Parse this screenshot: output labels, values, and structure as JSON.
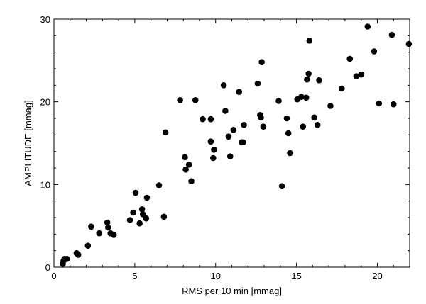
{
  "chart_data": {
    "type": "scatter",
    "xlabel": "RMS per 10 min [mmag]",
    "ylabel": "AMPLITUDE [mmag]",
    "xlim": [
      0,
      22
    ],
    "ylim": [
      0,
      30
    ],
    "xticks": [
      0,
      5,
      10,
      15,
      20
    ],
    "yticks": [
      0,
      10,
      20,
      30
    ],
    "grid": false,
    "marker_color": "#000000",
    "points": [
      [
        0.55,
        0.4
      ],
      [
        0.6,
        0.8
      ],
      [
        0.65,
        1.0
      ],
      [
        0.8,
        1.0
      ],
      [
        1.4,
        1.7
      ],
      [
        1.5,
        1.5
      ],
      [
        2.1,
        2.6
      ],
      [
        2.3,
        4.9
      ],
      [
        2.8,
        4.1
      ],
      [
        3.3,
        5.4
      ],
      [
        3.35,
        4.8
      ],
      [
        3.5,
        4.1
      ],
      [
        3.7,
        3.9
      ],
      [
        4.7,
        5.7
      ],
      [
        4.9,
        6.6
      ],
      [
        5.05,
        9.0
      ],
      [
        5.3,
        5.3
      ],
      [
        5.45,
        7.0
      ],
      [
        5.5,
        6.4
      ],
      [
        5.7,
        5.9
      ],
      [
        5.75,
        8.4
      ],
      [
        6.5,
        9.9
      ],
      [
        6.8,
        6.1
      ],
      [
        6.9,
        16.3
      ],
      [
        7.8,
        20.2
      ],
      [
        8.1,
        13.3
      ],
      [
        8.15,
        11.8
      ],
      [
        8.35,
        12.4
      ],
      [
        8.5,
        10.4
      ],
      [
        8.75,
        20.2
      ],
      [
        9.2,
        17.9
      ],
      [
        9.7,
        17.9
      ],
      [
        9.7,
        15.2
      ],
      [
        9.85,
        13.2
      ],
      [
        9.9,
        14.2
      ],
      [
        10.5,
        22.0
      ],
      [
        10.6,
        18.9
      ],
      [
        10.8,
        15.8
      ],
      [
        10.9,
        13.4
      ],
      [
        11.1,
        16.6
      ],
      [
        11.45,
        21.2
      ],
      [
        11.6,
        15.1
      ],
      [
        11.7,
        15.1
      ],
      [
        11.75,
        17.2
      ],
      [
        12.6,
        22.2
      ],
      [
        12.75,
        18.4
      ],
      [
        12.8,
        18.1
      ],
      [
        12.85,
        24.8
      ],
      [
        12.95,
        17.0
      ],
      [
        13.9,
        20.1
      ],
      [
        14.1,
        9.8
      ],
      [
        14.4,
        18.0
      ],
      [
        14.5,
        16.2
      ],
      [
        14.6,
        13.8
      ],
      [
        15.05,
        20.3
      ],
      [
        15.3,
        20.6
      ],
      [
        15.4,
        17.0
      ],
      [
        15.6,
        20.5
      ],
      [
        15.65,
        22.7
      ],
      [
        15.75,
        23.4
      ],
      [
        15.8,
        27.4
      ],
      [
        16.1,
        18.1
      ],
      [
        16.3,
        17.2
      ],
      [
        16.4,
        22.6
      ],
      [
        17.1,
        19.5
      ],
      [
        17.8,
        21.6
      ],
      [
        18.3,
        25.2
      ],
      [
        18.7,
        23.1
      ],
      [
        19.0,
        23.3
      ],
      [
        19.4,
        29.1
      ],
      [
        19.8,
        26.1
      ],
      [
        20.1,
        19.8
      ],
      [
        20.9,
        28.1
      ],
      [
        21.0,
        19.7
      ],
      [
        21.95,
        27.0
      ]
    ]
  }
}
